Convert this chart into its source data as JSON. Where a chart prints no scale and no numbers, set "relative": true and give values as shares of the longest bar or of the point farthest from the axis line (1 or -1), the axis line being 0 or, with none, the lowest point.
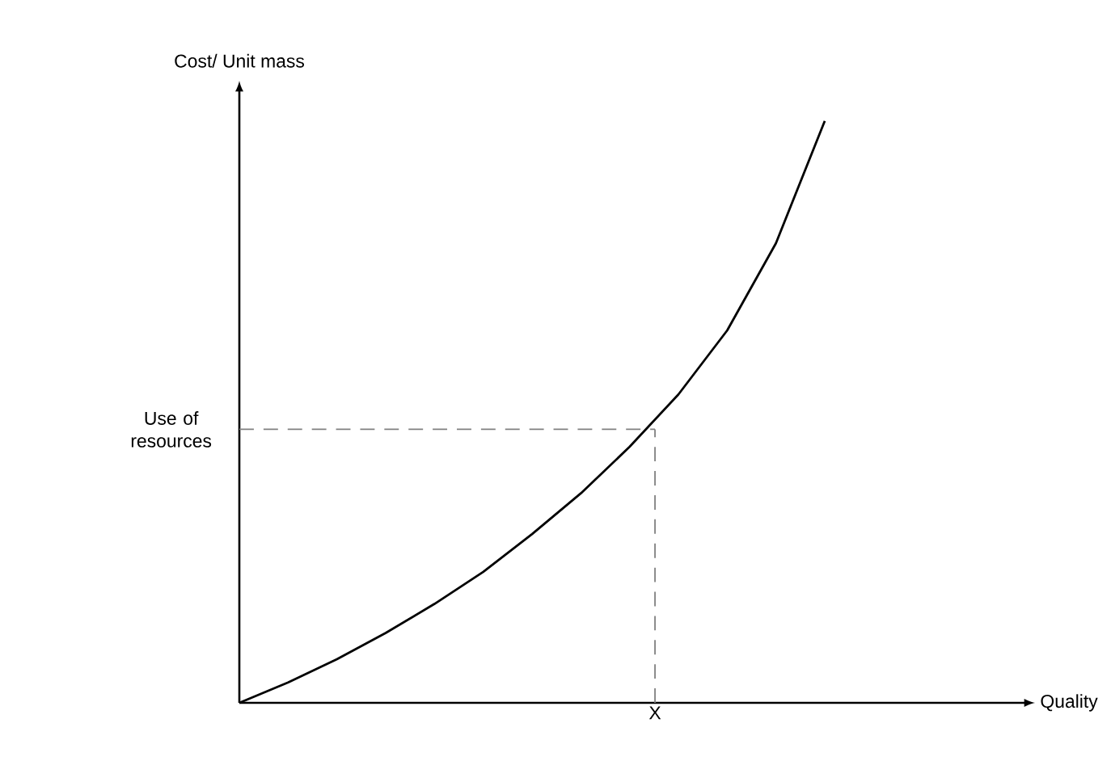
{
  "chart_data": {
    "type": "line",
    "relative": true,
    "ylabel": "Cost/ Unit mass",
    "color": "#000000",
    "categories": [
      null,
      null,
      null,
      null,
      null,
      null,
      null,
      null,
      null,
      null,
      null,
      null,
      null
    ],
    "values": [
      0,
      0.035,
      0.075,
      0.12,
      0.17,
      0.225,
      0.29,
      0.36,
      0.44,
      0.53,
      0.64,
      0.79,
      1.0
    ],
    "ref_lines": [
      {
        "axis": "y",
        "value": 0.47,
        "label": "Use of resources",
        "color": "#808080",
        "line_style": "dashed"
      }
    ],
    "annotations": [
      "X",
      "Quality"
    ]
  }
}
